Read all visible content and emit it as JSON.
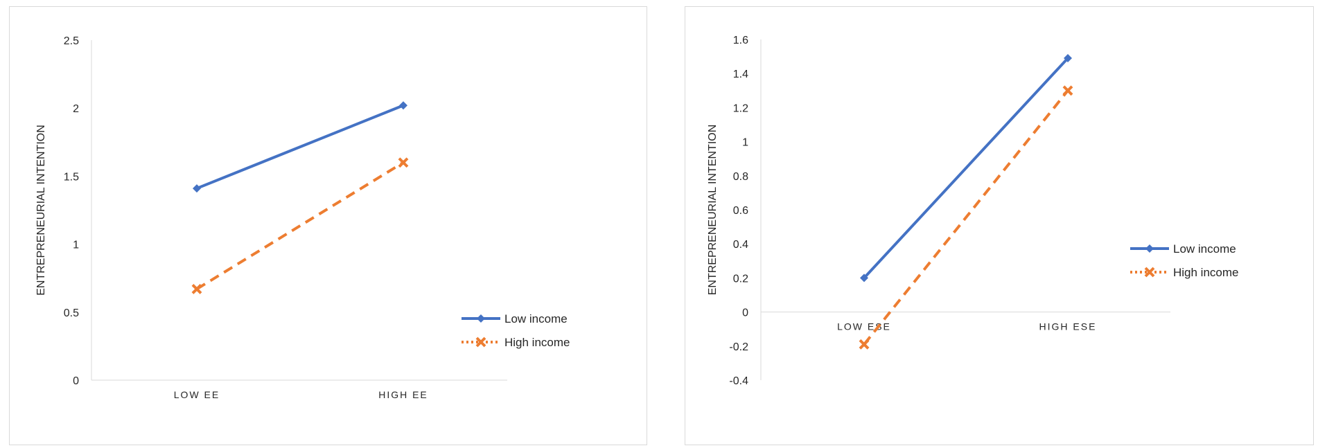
{
  "colors": {
    "low_income": "#4472C4",
    "high_income": "#ED7D31",
    "axis": "#d9d9d9"
  },
  "chart_data": [
    {
      "type": "line",
      "categories": [
        "LOW EE",
        "HIGH EE"
      ],
      "series": [
        {
          "name": "Low income",
          "values": [
            1.41,
            2.02
          ],
          "style": "solid",
          "marker": "diamond"
        },
        {
          "name": "High income",
          "values": [
            0.67,
            1.6
          ],
          "style": "dashed",
          "marker": "x"
        }
      ],
      "xlabel": "",
      "ylabel": "ENTREPRENEURIAL INTENTION",
      "ylim": [
        0,
        2.5
      ],
      "yticks": [
        "0",
        "0.5",
        "1",
        "1.5",
        "2",
        "2.5"
      ],
      "grid": false,
      "legend_position": "right"
    },
    {
      "type": "line",
      "categories": [
        "LOW ESE",
        "HIGH ESE"
      ],
      "series": [
        {
          "name": "Low income",
          "values": [
            0.2,
            1.49
          ],
          "style": "solid",
          "marker": "diamond"
        },
        {
          "name": "High income",
          "values": [
            -0.19,
            1.3
          ],
          "style": "dashed",
          "marker": "x"
        }
      ],
      "xlabel": "",
      "ylabel": "ENTREPRENEURIAL INTENTION",
      "ylim": [
        -0.4,
        1.6
      ],
      "yticks": [
        "-0.4",
        "-0.2",
        "0",
        "0.2",
        "0.4",
        "0.6",
        "0.8",
        "1",
        "1.2",
        "1.4",
        "1.6"
      ],
      "grid": false,
      "legend_position": "right"
    }
  ]
}
